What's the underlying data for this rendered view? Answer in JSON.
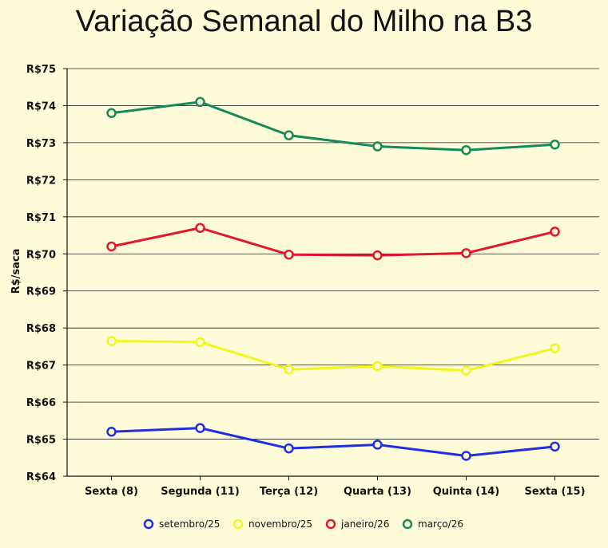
{
  "chart_data": {
    "type": "line",
    "title": "Variação Semanal do Milho na B3",
    "ylabel": "R$/saca",
    "xlabel": "",
    "categories": [
      "Sexta (8)",
      "Segunda (11)",
      "Terça (12)",
      "Quarta (13)",
      "Quinta (14)",
      "Sexta (15)"
    ],
    "y_ticks": [
      64,
      65,
      66,
      67,
      68,
      69,
      70,
      71,
      72,
      73,
      74,
      75
    ],
    "y_tick_prefix": "R$",
    "ylim": [
      64,
      75
    ],
    "grid": "horizontal",
    "legend_position": "bottom",
    "series": [
      {
        "name": "setembro/25",
        "color": "#1f2fe0",
        "values": [
          65.2,
          65.3,
          64.75,
          64.85,
          64.55,
          64.8
        ]
      },
      {
        "name": "novembro/25",
        "color": "#f5f51e",
        "values": [
          67.65,
          67.62,
          66.88,
          66.97,
          66.85,
          67.45
        ]
      },
      {
        "name": "janeiro/26",
        "color": "#e2172c",
        "values": [
          70.2,
          70.7,
          69.98,
          69.96,
          70.02,
          70.6
        ]
      },
      {
        "name": "março/26",
        "color": "#138a5a",
        "values": [
          73.8,
          74.1,
          73.2,
          72.9,
          72.8,
          72.95
        ]
      }
    ]
  }
}
